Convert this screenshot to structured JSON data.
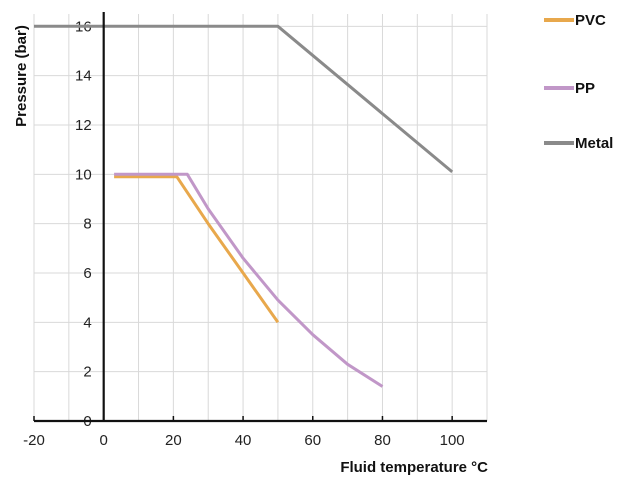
{
  "chart_data": {
    "type": "line",
    "title": "",
    "xlabel": "Fluid temperature °C",
    "ylabel": "Pressure (bar)",
    "xlim": [
      -20,
      110
    ],
    "ylim": [
      0,
      16.5
    ],
    "x_ticks": [
      -20,
      0,
      20,
      40,
      60,
      80,
      100
    ],
    "y_ticks": [
      0,
      2,
      4,
      6,
      8,
      10,
      12,
      14,
      16
    ],
    "grid": true,
    "legend_position": "right",
    "series": [
      {
        "name": "PVC",
        "color": "#e8a84c",
        "points": [
          [
            3,
            9.9
          ],
          [
            21,
            9.9
          ],
          [
            30,
            8.0
          ],
          [
            40,
            6.0
          ],
          [
            50,
            4.0
          ]
        ]
      },
      {
        "name": "PP",
        "color": "#c197c8",
        "points": [
          [
            3,
            10.0
          ],
          [
            24,
            10.0
          ],
          [
            30,
            8.6
          ],
          [
            40,
            6.6
          ],
          [
            50,
            4.9
          ],
          [
            60,
            3.5
          ],
          [
            70,
            2.3
          ],
          [
            80,
            1.4
          ]
        ]
      },
      {
        "name": "Metal",
        "color": "#8a8a8a",
        "points": [
          [
            -20,
            16.0
          ],
          [
            50,
            16.0
          ],
          [
            100,
            10.1
          ]
        ]
      }
    ]
  }
}
